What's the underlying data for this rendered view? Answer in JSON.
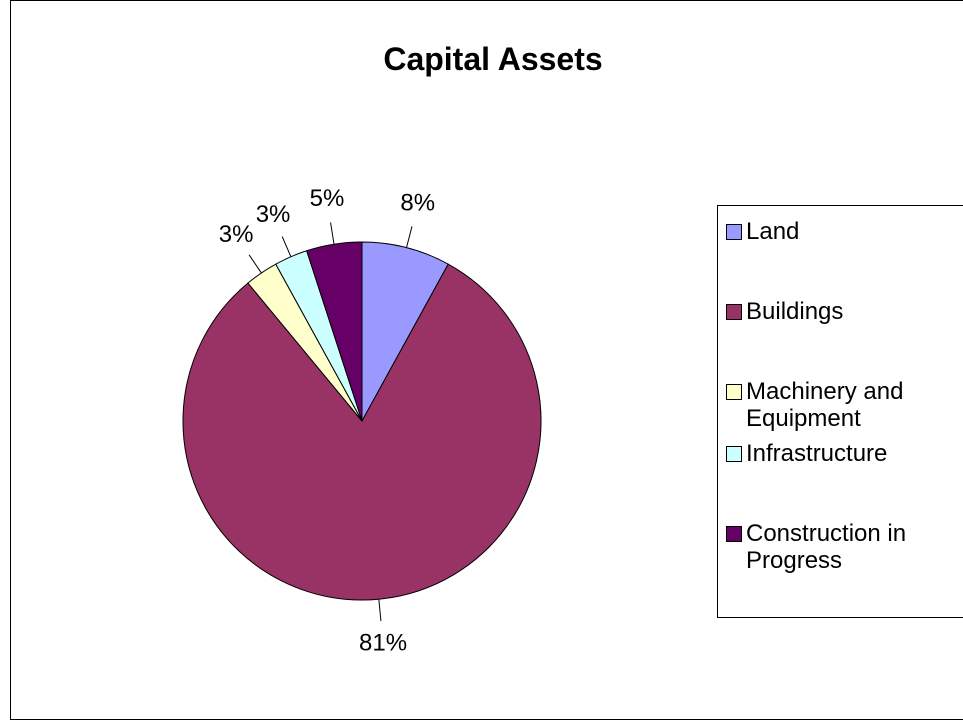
{
  "chart_data": {
    "type": "pie",
    "title": "Capital Assets",
    "categories": [
      "Land",
      "Buildings",
      "Machinery and Equipment",
      "Infrastructure",
      "Construction in Progress"
    ],
    "values": [
      8,
      81,
      3,
      3,
      5
    ],
    "value_labels": [
      "8%",
      "81%",
      "3%",
      "3%",
      "5%"
    ],
    "colors": [
      "#9999ff",
      "#993366",
      "#ffffcc",
      "#ccffff",
      "#660066"
    ],
    "legend": "right"
  }
}
